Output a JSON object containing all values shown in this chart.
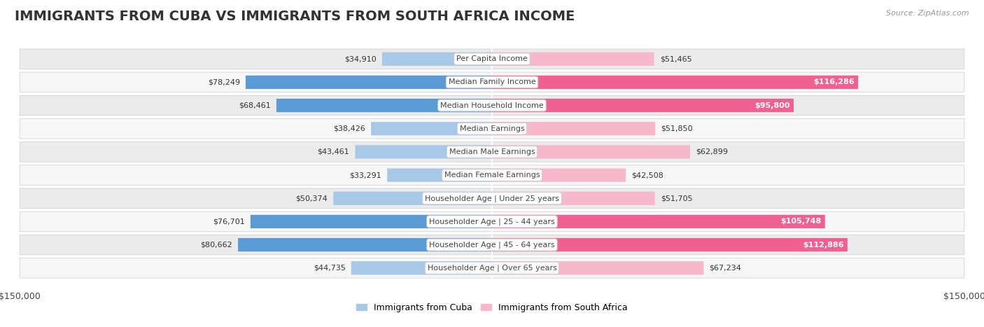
{
  "title": "IMMIGRANTS FROM CUBA VS IMMIGRANTS FROM SOUTH AFRICA INCOME",
  "source": "Source: ZipAtlas.com",
  "categories": [
    "Per Capita Income",
    "Median Family Income",
    "Median Household Income",
    "Median Earnings",
    "Median Male Earnings",
    "Median Female Earnings",
    "Householder Age | Under 25 years",
    "Householder Age | 25 - 44 years",
    "Householder Age | 45 - 64 years",
    "Householder Age | Over 65 years"
  ],
  "cuba_values": [
    34910,
    78249,
    68461,
    38426,
    43461,
    33291,
    50374,
    76701,
    80662,
    44735
  ],
  "sa_values": [
    51465,
    116286,
    95800,
    51850,
    62899,
    42508,
    51705,
    105748,
    112886,
    67234
  ],
  "cuba_color_light": "#a8c8e8",
  "cuba_color_dark": "#5b9bd5",
  "sa_color_light": "#f7b8cc",
  "sa_color_dark": "#f06090",
  "cuba_label": "Immigrants from Cuba",
  "sa_label": "Immigrants from South Africa",
  "max_value": 150000,
  "row_bg_odd": "#ebebeb",
  "row_bg_even": "#f7f7f7",
  "title_fontsize": 14,
  "axis_label_fontsize": 9,
  "bar_label_fontsize": 8,
  "category_fontsize": 8,
  "legend_fontsize": 9,
  "source_fontsize": 8,
  "cuba_dark_threshold": 60000,
  "sa_dark_threshold": 80000
}
